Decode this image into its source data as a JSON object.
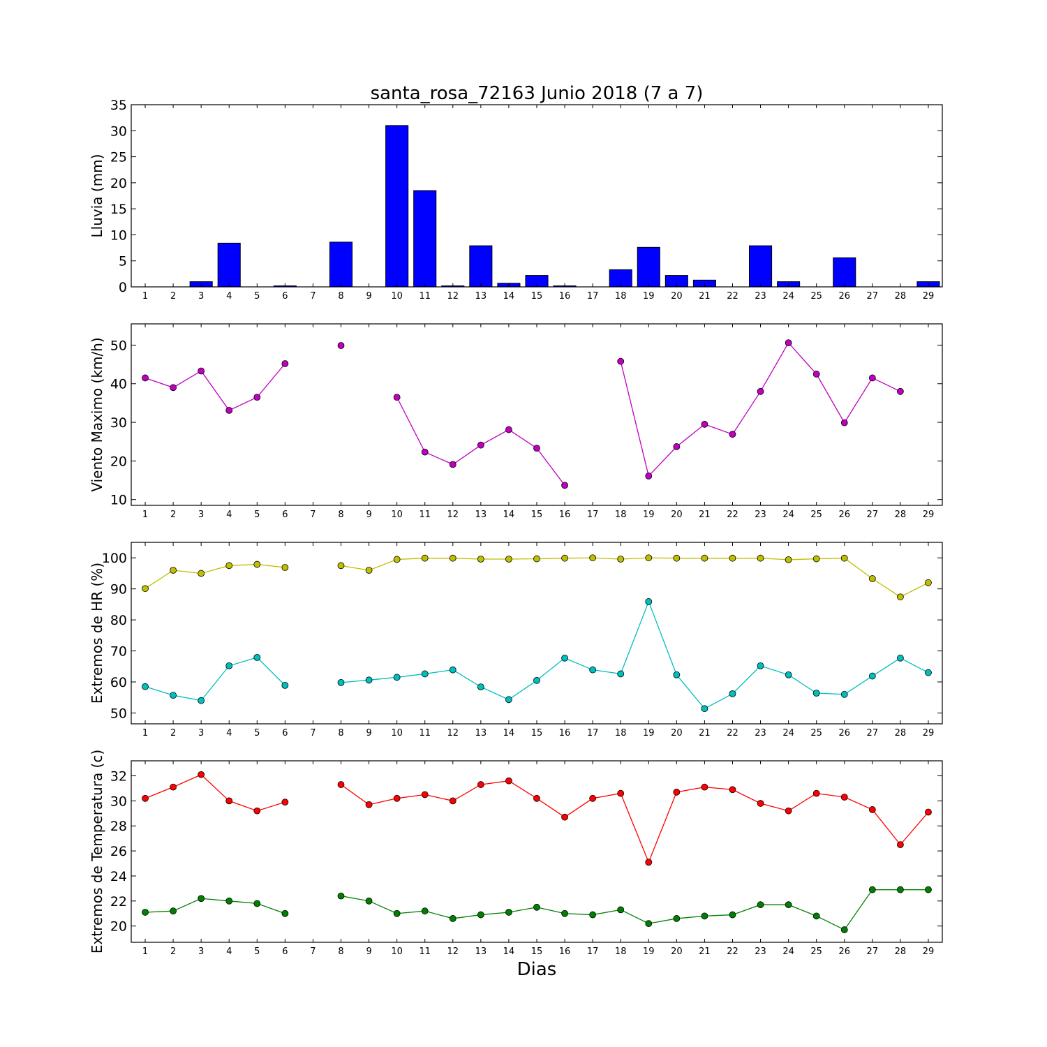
{
  "title": "santa_rosa_72163 Junio 2018  (7 a 7)",
  "xlabel": "Dias",
  "chart_data": [
    {
      "type": "bar",
      "ylabel": "Lluvia (mm)",
      "ylim": [
        0,
        35
      ],
      "yticks": [
        0,
        5,
        10,
        15,
        20,
        25,
        30,
        35
      ],
      "x": [
        1,
        2,
        3,
        4,
        5,
        6,
        7,
        8,
        9,
        10,
        11,
        12,
        13,
        14,
        15,
        16,
        17,
        18,
        19,
        20,
        21,
        22,
        23,
        24,
        25,
        26,
        27,
        28,
        29
      ],
      "series": [
        {
          "color": "#0000ff",
          "values": [
            0,
            0,
            1.0,
            8.4,
            0,
            0.2,
            0,
            8.6,
            0,
            31.0,
            18.5,
            0.2,
            7.9,
            0.7,
            2.2,
            0.2,
            0,
            3.3,
            7.6,
            2.2,
            1.3,
            0,
            7.9,
            1.0,
            0,
            5.6,
            0,
            0,
            1.0
          ]
        }
      ]
    },
    {
      "type": "line",
      "ylabel": "Viento Maximo (km/h)",
      "ylim": [
        8.5,
        55.5
      ],
      "yticks": [
        10,
        20,
        30,
        40,
        50
      ],
      "x": [
        1,
        2,
        3,
        4,
        5,
        6,
        7,
        8,
        9,
        10,
        11,
        12,
        13,
        14,
        15,
        16,
        17,
        18,
        19,
        20,
        21,
        22,
        23,
        24,
        25,
        26,
        27,
        28,
        29
      ],
      "series": [
        {
          "color": "#bf00bf",
          "values": [
            41.5,
            39.0,
            43.3,
            33.1,
            36.5,
            45.2,
            null,
            49.9,
            null,
            36.5,
            22.3,
            19.1,
            24.1,
            28.1,
            23.3,
            13.7,
            null,
            45.8,
            16.1,
            23.7,
            29.5,
            26.9,
            38.0,
            50.6,
            42.5,
            29.9,
            41.5,
            38.0,
            null
          ]
        }
      ]
    },
    {
      "type": "line",
      "ylabel": "Extremos de HR (%)",
      "ylim": [
        46.5,
        105
      ],
      "yticks": [
        50,
        60,
        70,
        80,
        90,
        100
      ],
      "x": [
        1,
        2,
        3,
        4,
        5,
        6,
        7,
        8,
        9,
        10,
        11,
        12,
        13,
        14,
        15,
        16,
        17,
        18,
        19,
        20,
        21,
        22,
        23,
        24,
        25,
        26,
        27,
        28,
        29
      ],
      "series": [
        {
          "color": "#bfbf00",
          "values": [
            90.1,
            96.0,
            95.0,
            97.5,
            97.9,
            96.9,
            null,
            97.5,
            96.0,
            99.5,
            99.9,
            99.9,
            99.6,
            99.6,
            99.7,
            99.9,
            100.0,
            99.6,
            100.0,
            99.9,
            99.9,
            99.9,
            99.9,
            99.4,
            99.7,
            99.9,
            93.3,
            87.4,
            92.0
          ]
        },
        {
          "color": "#00bfbf",
          "values": [
            58.5,
            55.7,
            54.0,
            65.2,
            67.9,
            58.9,
            null,
            59.8,
            60.6,
            61.5,
            62.6,
            63.9,
            58.4,
            54.3,
            60.5,
            67.7,
            63.9,
            62.6,
            85.9,
            62.3,
            51.4,
            56.2,
            65.2,
            62.3,
            56.4,
            56.0,
            61.9,
            67.7,
            63.0
          ]
        }
      ]
    },
    {
      "type": "line",
      "ylabel": "Extremos de Temperatura (c)",
      "ylim": [
        18.7,
        33.2
      ],
      "yticks": [
        20,
        22,
        24,
        26,
        28,
        30,
        32
      ],
      "x": [
        1,
        2,
        3,
        4,
        5,
        6,
        7,
        8,
        9,
        10,
        11,
        12,
        13,
        14,
        15,
        16,
        17,
        18,
        19,
        20,
        21,
        22,
        23,
        24,
        25,
        26,
        27,
        28,
        29
      ],
      "series": [
        {
          "color": "#ff0000",
          "values": [
            30.2,
            31.1,
            32.1,
            30.0,
            29.2,
            29.9,
            null,
            31.3,
            29.7,
            30.2,
            30.5,
            30.0,
            31.3,
            31.6,
            30.2,
            28.7,
            30.2,
            30.6,
            25.1,
            30.7,
            31.1,
            30.9,
            29.8,
            29.2,
            30.6,
            30.3,
            29.3,
            26.5,
            29.1
          ]
        },
        {
          "color": "#008000",
          "values": [
            21.1,
            21.2,
            22.2,
            22.0,
            21.8,
            21.0,
            null,
            22.4,
            22.0,
            21.0,
            21.2,
            20.6,
            20.9,
            21.1,
            21.5,
            21.0,
            20.9,
            21.3,
            20.2,
            20.6,
            20.8,
            20.9,
            21.7,
            21.7,
            20.8,
            19.7,
            22.9,
            22.9,
            22.9
          ]
        }
      ]
    }
  ]
}
